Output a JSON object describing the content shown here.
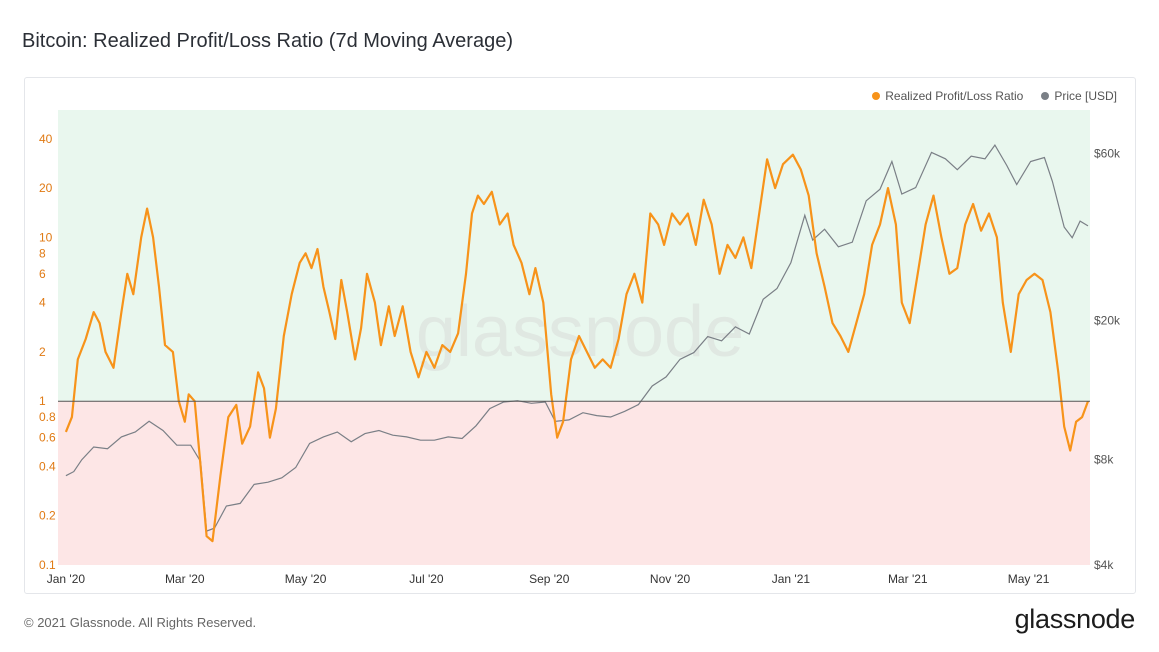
{
  "title": "Bitcoin: Realized Profit/Loss Ratio (7d Moving Average)",
  "footer": "© 2021 Glassnode. All Rights Reserved.",
  "logo_text": "glassnode",
  "watermark": "glassnode",
  "colors": {
    "ratio": "#f7931a",
    "price": "#7a7f86",
    "profit_zone": "#e9f7ee",
    "loss_zone": "#fde6e6",
    "baseline": "#555555"
  },
  "chart_data": {
    "type": "line",
    "title": "Bitcoin: Realized Profit/Loss Ratio (7d Moving Average)",
    "legend_position": "top-right",
    "grid": false,
    "baseline": 1,
    "x_range": [
      "2019-12-28",
      "2021-06-01"
    ],
    "x_ticks": [
      {
        "label": "Jan '20",
        "date": "2020-01-01"
      },
      {
        "label": "Mar '20",
        "date": "2020-03-01"
      },
      {
        "label": "May '20",
        "date": "2020-05-01"
      },
      {
        "label": "Jul '20",
        "date": "2020-07-01"
      },
      {
        "label": "Sep '20",
        "date": "2020-09-01"
      },
      {
        "label": "Nov '20",
        "date": "2020-11-01"
      },
      {
        "label": "Jan '21",
        "date": "2021-01-01"
      },
      {
        "label": "Mar '21",
        "date": "2021-03-01"
      },
      {
        "label": "May '21",
        "date": "2021-05-01"
      }
    ],
    "y_left": {
      "scale": "log",
      "range": [
        0.1,
        60
      ],
      "ticks": [
        {
          "label": "0.1",
          "value": 0.1
        },
        {
          "label": "0.2",
          "value": 0.2
        },
        {
          "label": "0.4",
          "value": 0.4
        },
        {
          "label": "0.6",
          "value": 0.6
        },
        {
          "label": "0.8",
          "value": 0.8
        },
        {
          "label": "1",
          "value": 1
        },
        {
          "label": "2",
          "value": 2
        },
        {
          "label": "4",
          "value": 4
        },
        {
          "label": "6",
          "value": 6
        },
        {
          "label": "8",
          "value": 8
        },
        {
          "label": "10",
          "value": 10
        },
        {
          "label": "20",
          "value": 20
        },
        {
          "label": "40",
          "value": 40
        }
      ]
    },
    "y_right": {
      "scale": "log",
      "range": [
        4000,
        80000
      ],
      "ticks": [
        {
          "label": "$4k",
          "value": 4000
        },
        {
          "label": "$8k",
          "value": 8000
        },
        {
          "label": "$20k",
          "value": 20000
        },
        {
          "label": "$60k",
          "value": 60000
        }
      ]
    },
    "series": [
      {
        "name": "Realized Profit/Loss Ratio",
        "axis": "left",
        "points": [
          [
            "2020-01-01",
            0.65
          ],
          [
            "2020-01-04",
            0.8
          ],
          [
            "2020-01-07",
            1.8
          ],
          [
            "2020-01-11",
            2.4
          ],
          [
            "2020-01-15",
            3.5
          ],
          [
            "2020-01-18",
            3.0
          ],
          [
            "2020-01-21",
            2.0
          ],
          [
            "2020-01-25",
            1.6
          ],
          [
            "2020-01-29",
            3.5
          ],
          [
            "2020-02-01",
            6.0
          ],
          [
            "2020-02-04",
            4.5
          ],
          [
            "2020-02-08",
            10.0
          ],
          [
            "2020-02-11",
            15.0
          ],
          [
            "2020-02-14",
            10.0
          ],
          [
            "2020-02-17",
            5.0
          ],
          [
            "2020-02-20",
            2.2
          ],
          [
            "2020-02-24",
            2.0
          ],
          [
            "2020-02-27",
            1.0
          ],
          [
            "2020-03-01",
            0.75
          ],
          [
            "2020-03-03",
            1.1
          ],
          [
            "2020-03-06",
            1.0
          ],
          [
            "2020-03-09",
            0.4
          ],
          [
            "2020-03-12",
            0.15
          ],
          [
            "2020-03-15",
            0.14
          ],
          [
            "2020-03-19",
            0.35
          ],
          [
            "2020-03-23",
            0.8
          ],
          [
            "2020-03-27",
            0.95
          ],
          [
            "2020-03-30",
            0.55
          ],
          [
            "2020-04-03",
            0.7
          ],
          [
            "2020-04-07",
            1.5
          ],
          [
            "2020-04-10",
            1.2
          ],
          [
            "2020-04-13",
            0.6
          ],
          [
            "2020-04-16",
            0.9
          ],
          [
            "2020-04-20",
            2.5
          ],
          [
            "2020-04-24",
            4.5
          ],
          [
            "2020-04-28",
            7.0
          ],
          [
            "2020-05-01",
            8.0
          ],
          [
            "2020-05-04",
            6.5
          ],
          [
            "2020-05-07",
            8.5
          ],
          [
            "2020-05-10",
            5.0
          ],
          [
            "2020-05-13",
            3.5
          ],
          [
            "2020-05-16",
            2.4
          ],
          [
            "2020-05-19",
            5.5
          ],
          [
            "2020-05-22",
            3.5
          ],
          [
            "2020-05-26",
            1.8
          ],
          [
            "2020-05-29",
            2.8
          ],
          [
            "2020-06-01",
            6.0
          ],
          [
            "2020-06-05",
            4.0
          ],
          [
            "2020-06-08",
            2.2
          ],
          [
            "2020-06-12",
            3.8
          ],
          [
            "2020-06-15",
            2.5
          ],
          [
            "2020-06-19",
            3.8
          ],
          [
            "2020-06-23",
            2.0
          ],
          [
            "2020-06-27",
            1.4
          ],
          [
            "2020-07-01",
            2.0
          ],
          [
            "2020-07-05",
            1.6
          ],
          [
            "2020-07-09",
            2.2
          ],
          [
            "2020-07-13",
            2.0
          ],
          [
            "2020-07-17",
            2.6
          ],
          [
            "2020-07-21",
            6.0
          ],
          [
            "2020-07-24",
            14.0
          ],
          [
            "2020-07-27",
            18.0
          ],
          [
            "2020-07-30",
            16.0
          ],
          [
            "2020-08-03",
            19.0
          ],
          [
            "2020-08-07",
            12.0
          ],
          [
            "2020-08-11",
            14.0
          ],
          [
            "2020-08-14",
            9.0
          ],
          [
            "2020-08-18",
            7.0
          ],
          [
            "2020-08-22",
            4.5
          ],
          [
            "2020-08-25",
            6.5
          ],
          [
            "2020-08-29",
            4.0
          ],
          [
            "2020-09-02",
            1.1
          ],
          [
            "2020-09-05",
            0.6
          ],
          [
            "2020-09-08",
            0.75
          ],
          [
            "2020-09-12",
            1.8
          ],
          [
            "2020-09-16",
            2.5
          ],
          [
            "2020-09-20",
            2.0
          ],
          [
            "2020-09-24",
            1.6
          ],
          [
            "2020-09-28",
            1.8
          ],
          [
            "2020-10-02",
            1.6
          ],
          [
            "2020-10-06",
            2.4
          ],
          [
            "2020-10-10",
            4.5
          ],
          [
            "2020-10-14",
            6.0
          ],
          [
            "2020-10-18",
            4.0
          ],
          [
            "2020-10-22",
            14.0
          ],
          [
            "2020-10-26",
            12.0
          ],
          [
            "2020-10-29",
            9.0
          ],
          [
            "2020-11-02",
            14.0
          ],
          [
            "2020-11-06",
            12.0
          ],
          [
            "2020-11-10",
            14.0
          ],
          [
            "2020-11-14",
            9.0
          ],
          [
            "2020-11-18",
            17.0
          ],
          [
            "2020-11-22",
            12.0
          ],
          [
            "2020-11-26",
            6.0
          ],
          [
            "2020-11-30",
            9.0
          ],
          [
            "2020-12-04",
            7.5
          ],
          [
            "2020-12-08",
            10.0
          ],
          [
            "2020-12-12",
            6.5
          ],
          [
            "2020-12-16",
            14.0
          ],
          [
            "2020-12-20",
            30.0
          ],
          [
            "2020-12-24",
            20.0
          ],
          [
            "2020-12-28",
            28.0
          ],
          [
            "2021-01-02",
            32.0
          ],
          [
            "2021-01-06",
            26.0
          ],
          [
            "2021-01-10",
            18.0
          ],
          [
            "2021-01-14",
            8.0
          ],
          [
            "2021-01-18",
            5.0
          ],
          [
            "2021-01-22",
            3.0
          ],
          [
            "2021-01-26",
            2.5
          ],
          [
            "2021-01-30",
            2.0
          ],
          [
            "2021-02-03",
            3.0
          ],
          [
            "2021-02-07",
            4.5
          ],
          [
            "2021-02-11",
            9.0
          ],
          [
            "2021-02-15",
            12.0
          ],
          [
            "2021-02-19",
            20.0
          ],
          [
            "2021-02-23",
            12.0
          ],
          [
            "2021-02-26",
            4.0
          ],
          [
            "2021-03-02",
            3.0
          ],
          [
            "2021-03-06",
            6.0
          ],
          [
            "2021-03-10",
            12.0
          ],
          [
            "2021-03-14",
            18.0
          ],
          [
            "2021-03-18",
            10.0
          ],
          [
            "2021-03-22",
            6.0
          ],
          [
            "2021-03-26",
            6.5
          ],
          [
            "2021-03-30",
            12.0
          ],
          [
            "2021-04-03",
            16.0
          ],
          [
            "2021-04-07",
            11.0
          ],
          [
            "2021-04-11",
            14.0
          ],
          [
            "2021-04-15",
            10.0
          ],
          [
            "2021-04-18",
            4.0
          ],
          [
            "2021-04-22",
            2.0
          ],
          [
            "2021-04-26",
            4.5
          ],
          [
            "2021-04-30",
            5.5
          ],
          [
            "2021-05-04",
            6.0
          ],
          [
            "2021-05-08",
            5.5
          ],
          [
            "2021-05-12",
            3.5
          ],
          [
            "2021-05-16",
            1.5
          ],
          [
            "2021-05-19",
            0.7
          ],
          [
            "2021-05-22",
            0.5
          ],
          [
            "2021-05-25",
            0.75
          ],
          [
            "2021-05-28",
            0.8
          ],
          [
            "2021-05-31",
            1.0
          ]
        ]
      },
      {
        "name": "Price [USD]",
        "axis": "right",
        "points": [
          [
            "2020-01-01",
            7200
          ],
          [
            "2020-01-05",
            7400
          ],
          [
            "2020-01-09",
            8000
          ],
          [
            "2020-01-15",
            8700
          ],
          [
            "2020-01-22",
            8600
          ],
          [
            "2020-01-29",
            9300
          ],
          [
            "2020-02-05",
            9600
          ],
          [
            "2020-02-12",
            10300
          ],
          [
            "2020-02-19",
            9700
          ],
          [
            "2020-02-26",
            8800
          ],
          [
            "2020-03-04",
            8800
          ],
          [
            "2020-03-09",
            7900
          ],
          [
            "2020-03-12",
            5000
          ],
          [
            "2020-03-16",
            5100
          ],
          [
            "2020-03-22",
            5900
          ],
          [
            "2020-03-29",
            6000
          ],
          [
            "2020-04-05",
            6800
          ],
          [
            "2020-04-12",
            6900
          ],
          [
            "2020-04-19",
            7100
          ],
          [
            "2020-04-26",
            7600
          ],
          [
            "2020-05-03",
            8900
          ],
          [
            "2020-05-10",
            9300
          ],
          [
            "2020-05-17",
            9600
          ],
          [
            "2020-05-24",
            9000
          ],
          [
            "2020-05-31",
            9500
          ],
          [
            "2020-06-07",
            9700
          ],
          [
            "2020-06-14",
            9400
          ],
          [
            "2020-06-21",
            9300
          ],
          [
            "2020-06-28",
            9100
          ],
          [
            "2020-07-05",
            9100
          ],
          [
            "2020-07-12",
            9300
          ],
          [
            "2020-07-19",
            9200
          ],
          [
            "2020-07-26",
            10000
          ],
          [
            "2020-08-02",
            11200
          ],
          [
            "2020-08-09",
            11700
          ],
          [
            "2020-08-16",
            11800
          ],
          [
            "2020-08-23",
            11600
          ],
          [
            "2020-08-30",
            11700
          ],
          [
            "2020-09-04",
            10300
          ],
          [
            "2020-09-11",
            10400
          ],
          [
            "2020-09-18",
            10900
          ],
          [
            "2020-09-25",
            10700
          ],
          [
            "2020-10-02",
            10600
          ],
          [
            "2020-10-09",
            11000
          ],
          [
            "2020-10-16",
            11500
          ],
          [
            "2020-10-23",
            13000
          ],
          [
            "2020-10-30",
            13800
          ],
          [
            "2020-11-06",
            15500
          ],
          [
            "2020-11-13",
            16200
          ],
          [
            "2020-11-20",
            18000
          ],
          [
            "2020-11-27",
            17500
          ],
          [
            "2020-12-04",
            19200
          ],
          [
            "2020-12-11",
            18300
          ],
          [
            "2020-12-18",
            23000
          ],
          [
            "2020-12-25",
            24700
          ],
          [
            "2021-01-01",
            29300
          ],
          [
            "2021-01-08",
            40000
          ],
          [
            "2021-01-12",
            34000
          ],
          [
            "2021-01-18",
            36500
          ],
          [
            "2021-01-25",
            32500
          ],
          [
            "2021-02-01",
            33500
          ],
          [
            "2021-02-08",
            44000
          ],
          [
            "2021-02-15",
            47500
          ],
          [
            "2021-02-21",
            57000
          ],
          [
            "2021-02-26",
            46000
          ],
          [
            "2021-03-05",
            48000
          ],
          [
            "2021-03-13",
            60500
          ],
          [
            "2021-03-20",
            58000
          ],
          [
            "2021-03-26",
            54000
          ],
          [
            "2021-04-02",
            59000
          ],
          [
            "2021-04-09",
            58000
          ],
          [
            "2021-04-14",
            63500
          ],
          [
            "2021-04-20",
            55500
          ],
          [
            "2021-04-25",
            49000
          ],
          [
            "2021-05-02",
            57000
          ],
          [
            "2021-05-09",
            58500
          ],
          [
            "2021-05-13",
            50000
          ],
          [
            "2021-05-19",
            37000
          ],
          [
            "2021-05-23",
            34500
          ],
          [
            "2021-05-27",
            38500
          ],
          [
            "2021-05-31",
            37300
          ]
        ]
      }
    ]
  }
}
